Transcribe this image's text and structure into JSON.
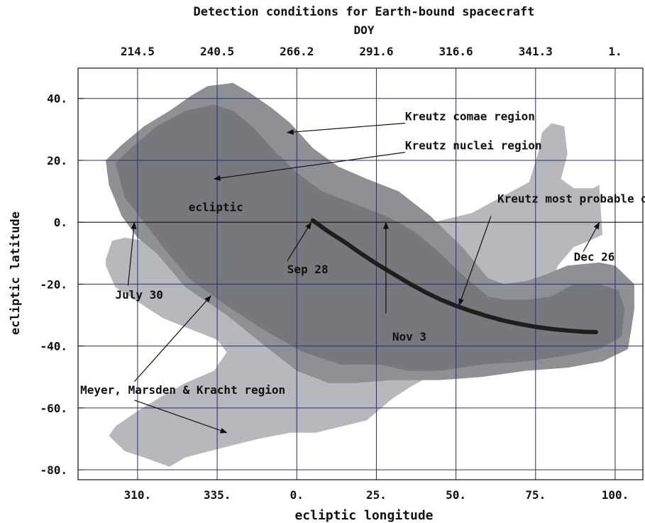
{
  "chart_data": {
    "type": "area",
    "title": "Detection conditions for Earth-bound spacecraft",
    "top_axis": {
      "label": "DOY",
      "ticks": [
        {
          "value": 214.5,
          "label": "214.5",
          "lon": 310
        },
        {
          "value": 240.5,
          "label": "240.5",
          "lon": 335
        },
        {
          "value": 266.2,
          "label": "266.2",
          "lon": 360
        },
        {
          "value": 291.6,
          "label": "291.6",
          "lon": 385
        },
        {
          "value": 316.6,
          "label": "316.6",
          "lon": 410
        },
        {
          "value": 341.3,
          "label": "341.3",
          "lon": 435
        },
        {
          "value": 1,
          "label": "1.",
          "lon": 460
        }
      ]
    },
    "xlabel": "ecliptic longitude",
    "ylabel": "ecliptic latitude",
    "x_ticks": [
      {
        "value": 310,
        "label": "310."
      },
      {
        "value": 335,
        "label": "335."
      },
      {
        "value": 360,
        "label": "0."
      },
      {
        "value": 385,
        "label": "25."
      },
      {
        "value": 410,
        "label": "50."
      },
      {
        "value": 435,
        "label": "75."
      },
      {
        "value": 460,
        "label": "100."
      }
    ],
    "y_ticks": [
      {
        "value": 40,
        "label": "40."
      },
      {
        "value": 20,
        "label": "20."
      },
      {
        "value": 0,
        "label": "0."
      },
      {
        "value": -20,
        "label": "-20."
      },
      {
        "value": -40,
        "label": "-40."
      },
      {
        "value": -60,
        "label": "-60."
      },
      {
        "value": -80,
        "label": "-80."
      }
    ],
    "xlim": [
      291.3,
      468.7
    ],
    "ylim": [
      -83.2,
      49.8
    ],
    "grid": true,
    "colors": {
      "mmk_region": "#b7b8bc",
      "comae_region": "#8f9094",
      "nuclei_region": "#77787c",
      "orbit": "#1e1e1e",
      "grid": "#2a2a7a"
    },
    "regions": [
      {
        "name": "mmk",
        "polygon": [
          [
            300,
            -12
          ],
          [
            302,
            -6
          ],
          [
            306,
            -5
          ],
          [
            312,
            -6
          ],
          [
            318,
            -5
          ],
          [
            328,
            -5
          ],
          [
            345,
            -6
          ],
          [
            365,
            -6
          ],
          [
            380,
            -4
          ],
          [
            395,
            -2
          ],
          [
            415,
            3
          ],
          [
            433,
            13
          ],
          [
            436,
            23
          ],
          [
            437,
            29
          ],
          [
            440,
            32
          ],
          [
            444,
            31
          ],
          [
            445,
            22
          ],
          [
            443,
            14
          ],
          [
            447,
            11
          ],
          [
            453,
            11
          ],
          [
            455,
            12
          ],
          [
            456,
            -4
          ],
          [
            452,
            -6
          ],
          [
            447,
            -8
          ],
          [
            442,
            -14
          ],
          [
            440,
            -20
          ],
          [
            432,
            -28
          ],
          [
            422,
            -34
          ],
          [
            415,
            -40
          ],
          [
            405,
            -48
          ],
          [
            396,
            -53
          ],
          [
            390,
            -57
          ],
          [
            382,
            -64
          ],
          [
            374,
            -66
          ],
          [
            366,
            -68
          ],
          [
            358,
            -68
          ],
          [
            348,
            -70
          ],
          [
            340,
            -72
          ],
          [
            325,
            -76
          ],
          [
            320,
            -79
          ],
          [
            312,
            -76
          ],
          [
            306,
            -74
          ],
          [
            301,
            -69
          ],
          [
            303,
            -66
          ],
          [
            310,
            -61
          ],
          [
            318,
            -56
          ],
          [
            325,
            -52
          ],
          [
            334,
            -48
          ],
          [
            338,
            -42
          ],
          [
            335,
            -38
          ],
          [
            318,
            -31
          ],
          [
            303,
            -21
          ],
          [
            300,
            -14
          ]
        ]
      },
      {
        "name": "comae",
        "polygon": [
          [
            300,
            20
          ],
          [
            305,
            25
          ],
          [
            312,
            31
          ],
          [
            320,
            36
          ],
          [
            327,
            41
          ],
          [
            332,
            44
          ],
          [
            340,
            45
          ],
          [
            345,
            42
          ],
          [
            352,
            37
          ],
          [
            358,
            32
          ],
          [
            365,
            24
          ],
          [
            373,
            18
          ],
          [
            382,
            14
          ],
          [
            392,
            10
          ],
          [
            402,
            2
          ],
          [
            412,
            -8
          ],
          [
            420,
            -18
          ],
          [
            425,
            -20
          ],
          [
            432,
            -19
          ],
          [
            438,
            -17
          ],
          [
            445,
            -14
          ],
          [
            455,
            -13
          ],
          [
            460,
            -14
          ],
          [
            466,
            -20
          ],
          [
            466,
            -28
          ],
          [
            465,
            -35
          ],
          [
            464,
            -41
          ],
          [
            456,
            -45
          ],
          [
            445,
            -47
          ],
          [
            432,
            -48
          ],
          [
            418,
            -50
          ],
          [
            405,
            -51
          ],
          [
            390,
            -51
          ],
          [
            378,
            -52
          ],
          [
            370,
            -52
          ],
          [
            360,
            -48
          ],
          [
            350,
            -40
          ],
          [
            338,
            -30
          ],
          [
            325,
            -21
          ],
          [
            316,
            -10
          ],
          [
            310,
            -5
          ],
          [
            305,
            2
          ],
          [
            301,
            12
          ],
          [
            300,
            20
          ]
        ]
      },
      {
        "name": "nuclei",
        "polygon": [
          [
            303,
            19
          ],
          [
            308,
            24
          ],
          [
            316,
            31
          ],
          [
            325,
            36
          ],
          [
            334,
            38
          ],
          [
            340,
            36
          ],
          [
            346,
            31
          ],
          [
            353,
            23
          ],
          [
            360,
            16
          ],
          [
            368,
            10
          ],
          [
            378,
            6
          ],
          [
            388,
            2
          ],
          [
            397,
            -3
          ],
          [
            405,
            -10
          ],
          [
            412,
            -17
          ],
          [
            420,
            -24
          ],
          [
            425,
            -25
          ],
          [
            433,
            -25
          ],
          [
            440,
            -24
          ],
          [
            447,
            -20
          ],
          [
            455,
            -20
          ],
          [
            461,
            -22
          ],
          [
            463,
            -28
          ],
          [
            462,
            -37
          ],
          [
            455,
            -41
          ],
          [
            445,
            -43
          ],
          [
            432,
            -45
          ],
          [
            418,
            -46
          ],
          [
            405,
            -48
          ],
          [
            395,
            -48
          ],
          [
            386,
            -46
          ],
          [
            374,
            -46
          ],
          [
            362,
            -42
          ],
          [
            350,
            -35
          ],
          [
            338,
            -27
          ],
          [
            326,
            -18
          ],
          [
            318,
            -8
          ],
          [
            312,
            0
          ],
          [
            306,
            8
          ],
          [
            303,
            19
          ]
        ]
      }
    ],
    "series": [
      {
        "name": "Kreutz most probable orbit",
        "x": [
          365.0,
          370.0,
          375.0,
          380.0,
          385.0,
          390.0,
          395.0,
          400.0,
          405.0,
          410.0,
          415.0,
          420.0,
          425.0,
          430.0,
          435.0,
          440.0,
          445.0,
          450.0,
          454.0
        ],
        "y": [
          0.6,
          -3.1,
          -6.4,
          -10.0,
          -13.4,
          -16.5,
          -19.6,
          -22.4,
          -24.9,
          -27.0,
          -28.8,
          -30.4,
          -31.8,
          -32.9,
          -33.8,
          -34.5,
          -35.0,
          -35.4,
          -35.5
        ]
      }
    ],
    "annotations": [
      {
        "name": "comae-label",
        "text": "Kreutz comae region",
        "x": 394,
        "y": 33,
        "arrow_to": [
          357,
          29
        ]
      },
      {
        "name": "nuclei-label",
        "text": "Kreutz nuclei region",
        "x": 394,
        "y": 23.5,
        "arrow_to": [
          334,
          14
        ]
      },
      {
        "name": "orbit-label",
        "text": "Kreutz most probable orbit",
        "x": 423,
        "y": 6.3,
        "arrow_to": [
          411,
          -26.8
        ]
      },
      {
        "name": "ecliptic-label",
        "text": "ecliptic",
        "x": 326,
        "y": 3.6
      },
      {
        "name": "sep28-label",
        "text": "Sep 28",
        "x": 357,
        "y": -16.5,
        "arrow_to": [
          364.5,
          -0.1
        ]
      },
      {
        "name": "july30-label",
        "text": "July 30",
        "x": 303,
        "y": -24.7,
        "arrow_to": [
          309,
          -0.1
        ]
      },
      {
        "name": "nov3-label",
        "text": "Nov 3",
        "x": 390,
        "y": -38.3,
        "arrow_to": [
          388,
          -0.1
        ]
      },
      {
        "name": "dec26-label",
        "text": "Dec 26",
        "x": 447,
        "y": -12.5,
        "arrow_to": [
          455,
          -0.1
        ]
      },
      {
        "name": "mmk-label",
        "text": "Meyer, Marsden & Kracht region",
        "x": 292,
        "y": -55.5,
        "arrow_to": [
          [
            333,
            -23.8
          ],
          [
            338,
            -68
          ]
        ]
      }
    ]
  }
}
